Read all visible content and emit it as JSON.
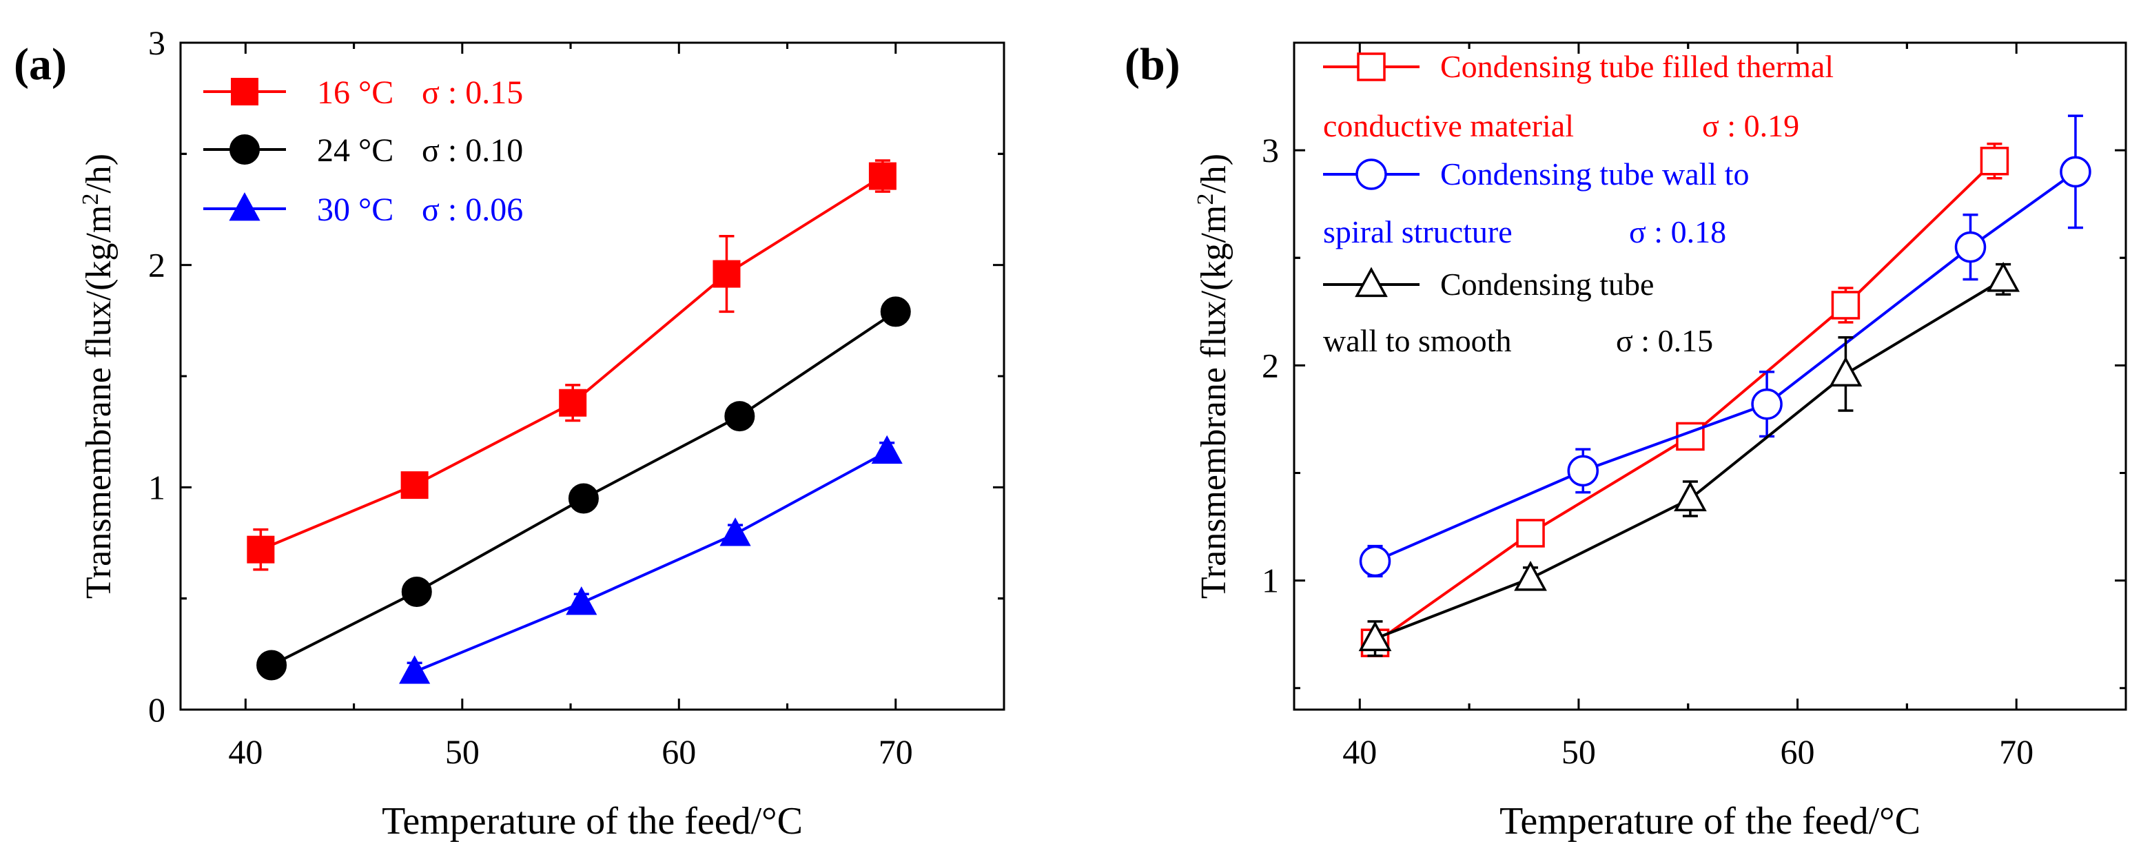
{
  "chart_data": [
    {
      "panel_label": "(a)",
      "type": "line",
      "xlabel": "Temperature of the feed/°C",
      "ylabel": "Transmembrane flux/(kg/m²/h)",
      "ylabel_parts": [
        "Transmembrane flux/(kg/m",
        "2",
        "/h)"
      ],
      "xlim": [
        37,
        75
      ],
      "ylim": [
        0,
        3
      ],
      "xticks": [
        40,
        50,
        60,
        70
      ],
      "yticks": [
        0,
        1,
        2,
        3
      ],
      "xtick_labels": [
        "40",
        "50",
        "60",
        "70"
      ],
      "ytick_labels": [
        "0",
        "1",
        "2",
        "3"
      ],
      "legend_position": "top-left",
      "series": [
        {
          "name": "16 °C",
          "sigma_label": "σ : 0.15",
          "color": "#ff0000",
          "marker": "square-filled",
          "x": [
            40.7,
            47.8,
            55.1,
            62.2,
            69.4
          ],
          "y": [
            0.72,
            1.01,
            1.38,
            1.96,
            2.4
          ],
          "err": [
            0.09,
            0.05,
            0.08,
            0.17,
            0.07
          ]
        },
        {
          "name": "24 °C",
          "sigma_label": "σ : 0.10",
          "color": "#000000",
          "marker": "circle-filled",
          "x": [
            41.2,
            47.9,
            55.6,
            62.8,
            70.0
          ],
          "y": [
            0.2,
            0.53,
            0.95,
            1.32,
            1.79
          ],
          "err": [
            0,
            0,
            0,
            0,
            0
          ]
        },
        {
          "name": "30 °C",
          "sigma_label": "σ : 0.06",
          "color": "#0000ff",
          "marker": "triangle-filled",
          "x": [
            47.8,
            55.5,
            62.6,
            69.6
          ],
          "y": [
            0.17,
            0.48,
            0.79,
            1.16
          ],
          "err": [
            0.04,
            0.04,
            0.04,
            0.04
          ]
        }
      ]
    },
    {
      "panel_label": "(b)",
      "type": "line",
      "xlabel": "Temperature of the feed/°C",
      "ylabel": "Transmembrane flux/(kg/m²/h)",
      "ylabel_parts": [
        "Transmembrane flux/(kg/m",
        "2",
        "/h)"
      ],
      "xlim": [
        37,
        75
      ],
      "ylim": [
        0.4,
        3.5
      ],
      "xticks": [
        40,
        50,
        60,
        70
      ],
      "yticks": [
        1,
        2,
        3
      ],
      "xtick_labels": [
        "40",
        "50",
        "60",
        "70"
      ],
      "ytick_labels": [
        "1",
        "2",
        "3"
      ],
      "legend_position": "top-left",
      "series": [
        {
          "name_lines": [
            "Condensing tube filled thermal",
            "conductive material"
          ],
          "sigma_label": "σ : 0.19",
          "color": "#ff0000",
          "marker": "square-open",
          "x": [
            40.7,
            47.8,
            55.1,
            62.2,
            69.0
          ],
          "y": [
            0.71,
            1.22,
            1.67,
            2.28,
            2.95
          ],
          "err": [
            0.04,
            0.04,
            0.04,
            0.08,
            0.08
          ]
        },
        {
          "name_lines": [
            "Condensing tube wall to",
            "spiral structure"
          ],
          "sigma_label": "σ : 0.18",
          "color": "#0000ff",
          "marker": "circle-open",
          "x": [
            40.7,
            50.2,
            58.6,
            67.9,
            72.7
          ],
          "y": [
            1.09,
            1.51,
            1.82,
            2.55,
            2.9
          ],
          "err": [
            0.07,
            0.1,
            0.15,
            0.15,
            0.26
          ]
        },
        {
          "name_lines": [
            "Condensing tube",
            "wall to smooth"
          ],
          "sigma_label": "σ : 0.15",
          "color": "#000000",
          "marker": "triangle-open",
          "x": [
            40.7,
            47.8,
            55.1,
            62.2,
            69.4
          ],
          "y": [
            0.73,
            1.01,
            1.38,
            1.96,
            2.4
          ],
          "err": [
            0.08,
            0.05,
            0.08,
            0.17,
            0.07
          ]
        }
      ]
    }
  ]
}
